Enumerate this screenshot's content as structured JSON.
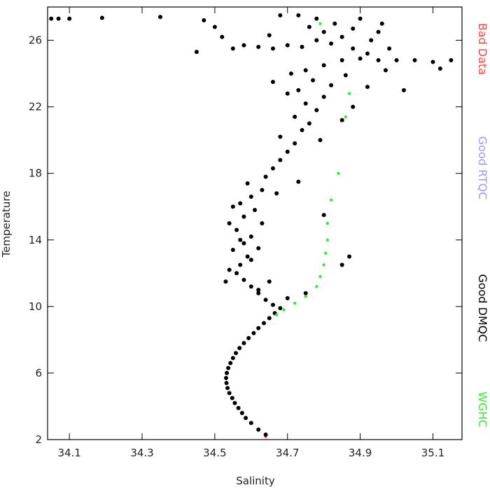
{
  "chart_data": {
    "type": "scatter",
    "x_label": "Salinity",
    "y_label": "Temperature",
    "xlim": [
      34.04,
      35.18
    ],
    "xticks": [
      34.1,
      34.3,
      34.5,
      34.7,
      34.9,
      35.1
    ],
    "ylim": [
      2,
      28
    ],
    "yticks": [
      2,
      6,
      10,
      14,
      18,
      22,
      26
    ],
    "series": [
      {
        "name": "Bad Data",
        "color": "#ff4040",
        "x": [
          34.64
        ],
        "y": [
          2.2
        ]
      },
      {
        "name": "Good RTQC",
        "color": "#9999ff",
        "x": [],
        "y": []
      },
      {
        "name": "Good DMQC",
        "color": "#000000",
        "x": [
          34.64,
          34.62,
          34.6,
          34.585,
          34.575,
          34.565,
          34.555,
          34.548,
          34.54,
          34.535,
          34.532,
          34.531,
          34.533,
          34.537,
          34.543,
          34.55,
          34.558,
          34.568,
          34.58,
          34.593,
          34.607,
          34.62,
          34.635,
          34.65,
          34.665,
          34.68,
          34.66,
          34.64,
          34.62,
          34.6,
          34.58,
          34.56,
          34.57,
          34.59,
          34.55,
          34.58,
          34.6,
          34.56,
          34.54,
          34.58,
          34.61,
          34.57,
          34.6,
          34.63,
          34.59,
          34.64,
          34.66,
          34.62,
          34.65,
          34.54,
          34.6,
          34.62,
          34.57,
          34.53,
          34.63,
          34.55,
          34.67,
          34.7,
          34.75,
          34.85,
          34.87,
          34.8,
          34.73,
          34.68,
          34.7,
          34.72,
          34.68,
          34.74,
          34.76,
          34.72,
          34.78,
          34.75,
          34.8,
          34.73,
          34.82,
          34.77,
          34.7,
          34.85,
          34.79,
          34.66,
          34.88,
          34.75,
          34.8,
          34.85,
          34.9,
          34.95,
          35.0,
          35.05,
          35.1,
          35.15,
          35.12,
          34.97,
          34.92,
          34.88,
          34.82,
          34.78,
          34.74,
          34.7,
          34.66,
          34.62,
          34.58,
          34.85,
          34.8,
          34.88,
          34.83,
          34.78,
          34.73,
          34.68,
          34.9,
          34.95,
          34.93,
          34.98,
          34.86,
          34.92,
          35.02,
          34.71,
          34.76,
          34.96,
          34.65,
          34.05,
          34.07,
          34.1,
          34.19,
          34.35,
          34.47,
          34.5,
          34.52,
          34.55,
          34.45
        ],
        "y": [
          2.3,
          2.6,
          3.0,
          3.3,
          3.6,
          3.9,
          4.2,
          4.5,
          4.8,
          5.1,
          5.4,
          5.7,
          6.0,
          6.3,
          6.6,
          6.9,
          7.2,
          7.5,
          7.8,
          8.1,
          8.4,
          8.7,
          9.0,
          9.3,
          9.6,
          9.9,
          10.1,
          10.4,
          10.8,
          11.2,
          11.6,
          12.0,
          12.5,
          13.0,
          13.4,
          13.8,
          14.2,
          14.6,
          15.0,
          15.4,
          15.8,
          16.2,
          16.6,
          17.0,
          17.4,
          17.8,
          18.3,
          11.0,
          11.5,
          12.2,
          12.8,
          13.5,
          14.0,
          11.5,
          15.0,
          16.0,
          16.8,
          10.5,
          10.8,
          12.5,
          13.0,
          15.5,
          17.5,
          18.8,
          19.3,
          19.8,
          20.2,
          20.6,
          21.0,
          21.4,
          21.8,
          22.2,
          22.6,
          23.0,
          23.3,
          23.6,
          22.8,
          21.2,
          20.0,
          23.5,
          22.0,
          24.2,
          24.5,
          24.8,
          24.9,
          24.8,
          24.8,
          24.8,
          24.7,
          24.8,
          24.3,
          24.2,
          25.2,
          25.5,
          25.8,
          26.0,
          25.6,
          25.7,
          25.5,
          25.6,
          25.7,
          26.2,
          26.5,
          26.7,
          27.0,
          27.3,
          27.5,
          27.5,
          27.3,
          26.5,
          26.0,
          25.5,
          23.9,
          23.2,
          23.0,
          24.0,
          26.8,
          27.0,
          26.3,
          27.3,
          27.3,
          27.3,
          27.35,
          27.4,
          27.2,
          26.8,
          26.2,
          25.5,
          25.3
        ]
      },
      {
        "name": "WGHC",
        "color": "#33ee33",
        "x": [
          34.79,
          34.87,
          34.86,
          34.84,
          34.82,
          34.81,
          34.81,
          34.805,
          34.8,
          34.79,
          34.78,
          34.75,
          34.72,
          34.69,
          34.67
        ],
        "y": [
          27.0,
          22.8,
          21.4,
          18.0,
          16.4,
          15.0,
          14.0,
          13.2,
          12.5,
          11.8,
          11.2,
          10.6,
          10.2,
          9.8,
          9.5
        ]
      }
    ]
  }
}
